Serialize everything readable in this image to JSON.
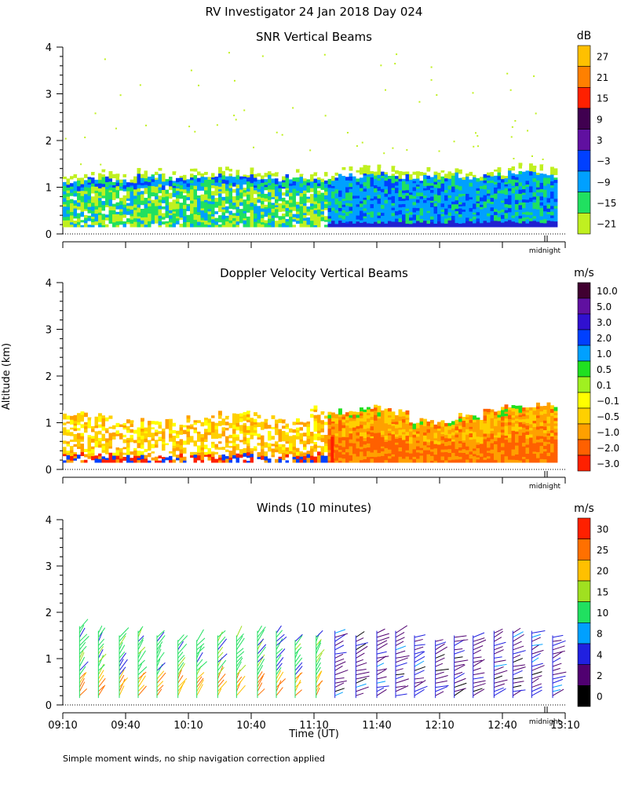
{
  "title": "RV Investigator  24 Jan 2018 Day 024",
  "footnote": "Simple moment winds, no ship navigation correction applied",
  "chart_data": [
    {
      "type": "heatmap",
      "title": "SNR Vertical Beams",
      "ylabel": "Altitude (km)",
      "ylim": [
        0,
        4
      ],
      "yticks": [
        0,
        1,
        2,
        3,
        4
      ],
      "xlim": [
        0,
        240
      ],
      "midnight_marker": "midnight",
      "colorbar": {
        "unit": "dB",
        "labels": [
          "27",
          "21",
          "15",
          "9",
          "3",
          "−3",
          "−9",
          "−15",
          "−21"
        ],
        "colors": [
          "#ffc000",
          "#ff8000",
          "#ff2000",
          "#400050",
          "#6010a0",
          "#0040ff",
          "#00a0ff",
          "#20e060",
          "#c0f020"
        ]
      },
      "cloud_layer": {
        "base_km": 0.15,
        "top_km": [
          1.2,
          1.3,
          1.25,
          1.35,
          1.3,
          1.3,
          1.4,
          1.35,
          1.3,
          1.3,
          1.25,
          1.35,
          1.4,
          1.35,
          1.3,
          1.35,
          1.3,
          1.35,
          1.45,
          1.4
        ]
      }
    },
    {
      "type": "heatmap",
      "title": "Doppler Velocity Vertical Beams",
      "ylabel": "Altitude (km)",
      "ylim": [
        0,
        4
      ],
      "yticks": [
        0,
        1,
        2,
        3,
        4
      ],
      "xlim": [
        0,
        240
      ],
      "midnight_marker": "midnight",
      "colorbar": {
        "unit": "m/s",
        "labels": [
          "10.0",
          "5.0",
          "3.0",
          "2.0",
          "1.0",
          "0.5",
          "0.1",
          "−0.1",
          "−0.5",
          "−1.0",
          "−2.0",
          "−3.0"
        ],
        "colors": [
          "#400030",
          "#6010a0",
          "#3010d0",
          "#0040ff",
          "#00a0ff",
          "#20e020",
          "#a0f020",
          "#ffff00",
          "#ffd000",
          "#ffa000",
          "#ff6000",
          "#ff2000"
        ]
      },
      "cloud_layer": {
        "base_km": 0.15,
        "top_km": [
          1.15,
          1.1,
          1.0,
          1.05,
          1.0,
          1.05,
          1.15,
          1.2,
          1.05,
          1.0,
          1.25,
          1.2,
          1.3,
          1.2,
          1.0,
          1.0,
          1.1,
          1.25,
          1.3,
          1.35
        ]
      }
    },
    {
      "type": "scatter",
      "title": "Winds (10 minutes)",
      "ylabel": "Altitude (km)",
      "xlabel": "Time (UT)",
      "ylim": [
        0,
        4
      ],
      "yticks": [
        0,
        1,
        2,
        3,
        4
      ],
      "xlim": [
        0,
        240
      ],
      "xticks": [
        {
          "label": "09:10",
          "x": 0
        },
        {
          "label": "09:40",
          "x": 30
        },
        {
          "label": "10:10",
          "x": 60
        },
        {
          "label": "10:40",
          "x": 90
        },
        {
          "label": "11:10",
          "x": 120
        },
        {
          "label": "11:40",
          "x": 150
        },
        {
          "label": "12:10",
          "x": 180
        },
        {
          "label": "12:40",
          "x": 210
        },
        {
          "label": "13:10",
          "x": 240
        }
      ],
      "midnight_marker": "midnight",
      "profile_times_min": [
        8,
        17,
        27,
        36,
        45,
        55,
        64,
        74,
        83,
        93,
        102,
        111,
        121,
        130,
        140,
        150,
        159,
        168,
        178,
        187,
        196,
        206,
        215,
        224,
        234
      ],
      "profile_tops_km": [
        1.7,
        1.6,
        1.5,
        1.6,
        1.5,
        1.4,
        1.4,
        1.5,
        1.5,
        1.6,
        1.6,
        1.4,
        1.5,
        1.6,
        1.5,
        1.6,
        1.6,
        1.5,
        1.4,
        1.5,
        1.5,
        1.6,
        1.6,
        1.6,
        1.5
      ],
      "colorbar": {
        "unit": "m/s",
        "labels": [
          "30",
          "25",
          "20",
          "15",
          "10",
          "8",
          "4",
          "2",
          "0"
        ],
        "colors": [
          "#ff2000",
          "#ff7000",
          "#ffc000",
          "#a0e020",
          "#20e060",
          "#00a0ff",
          "#2020e0",
          "#500070",
          "#000000"
        ]
      }
    }
  ]
}
